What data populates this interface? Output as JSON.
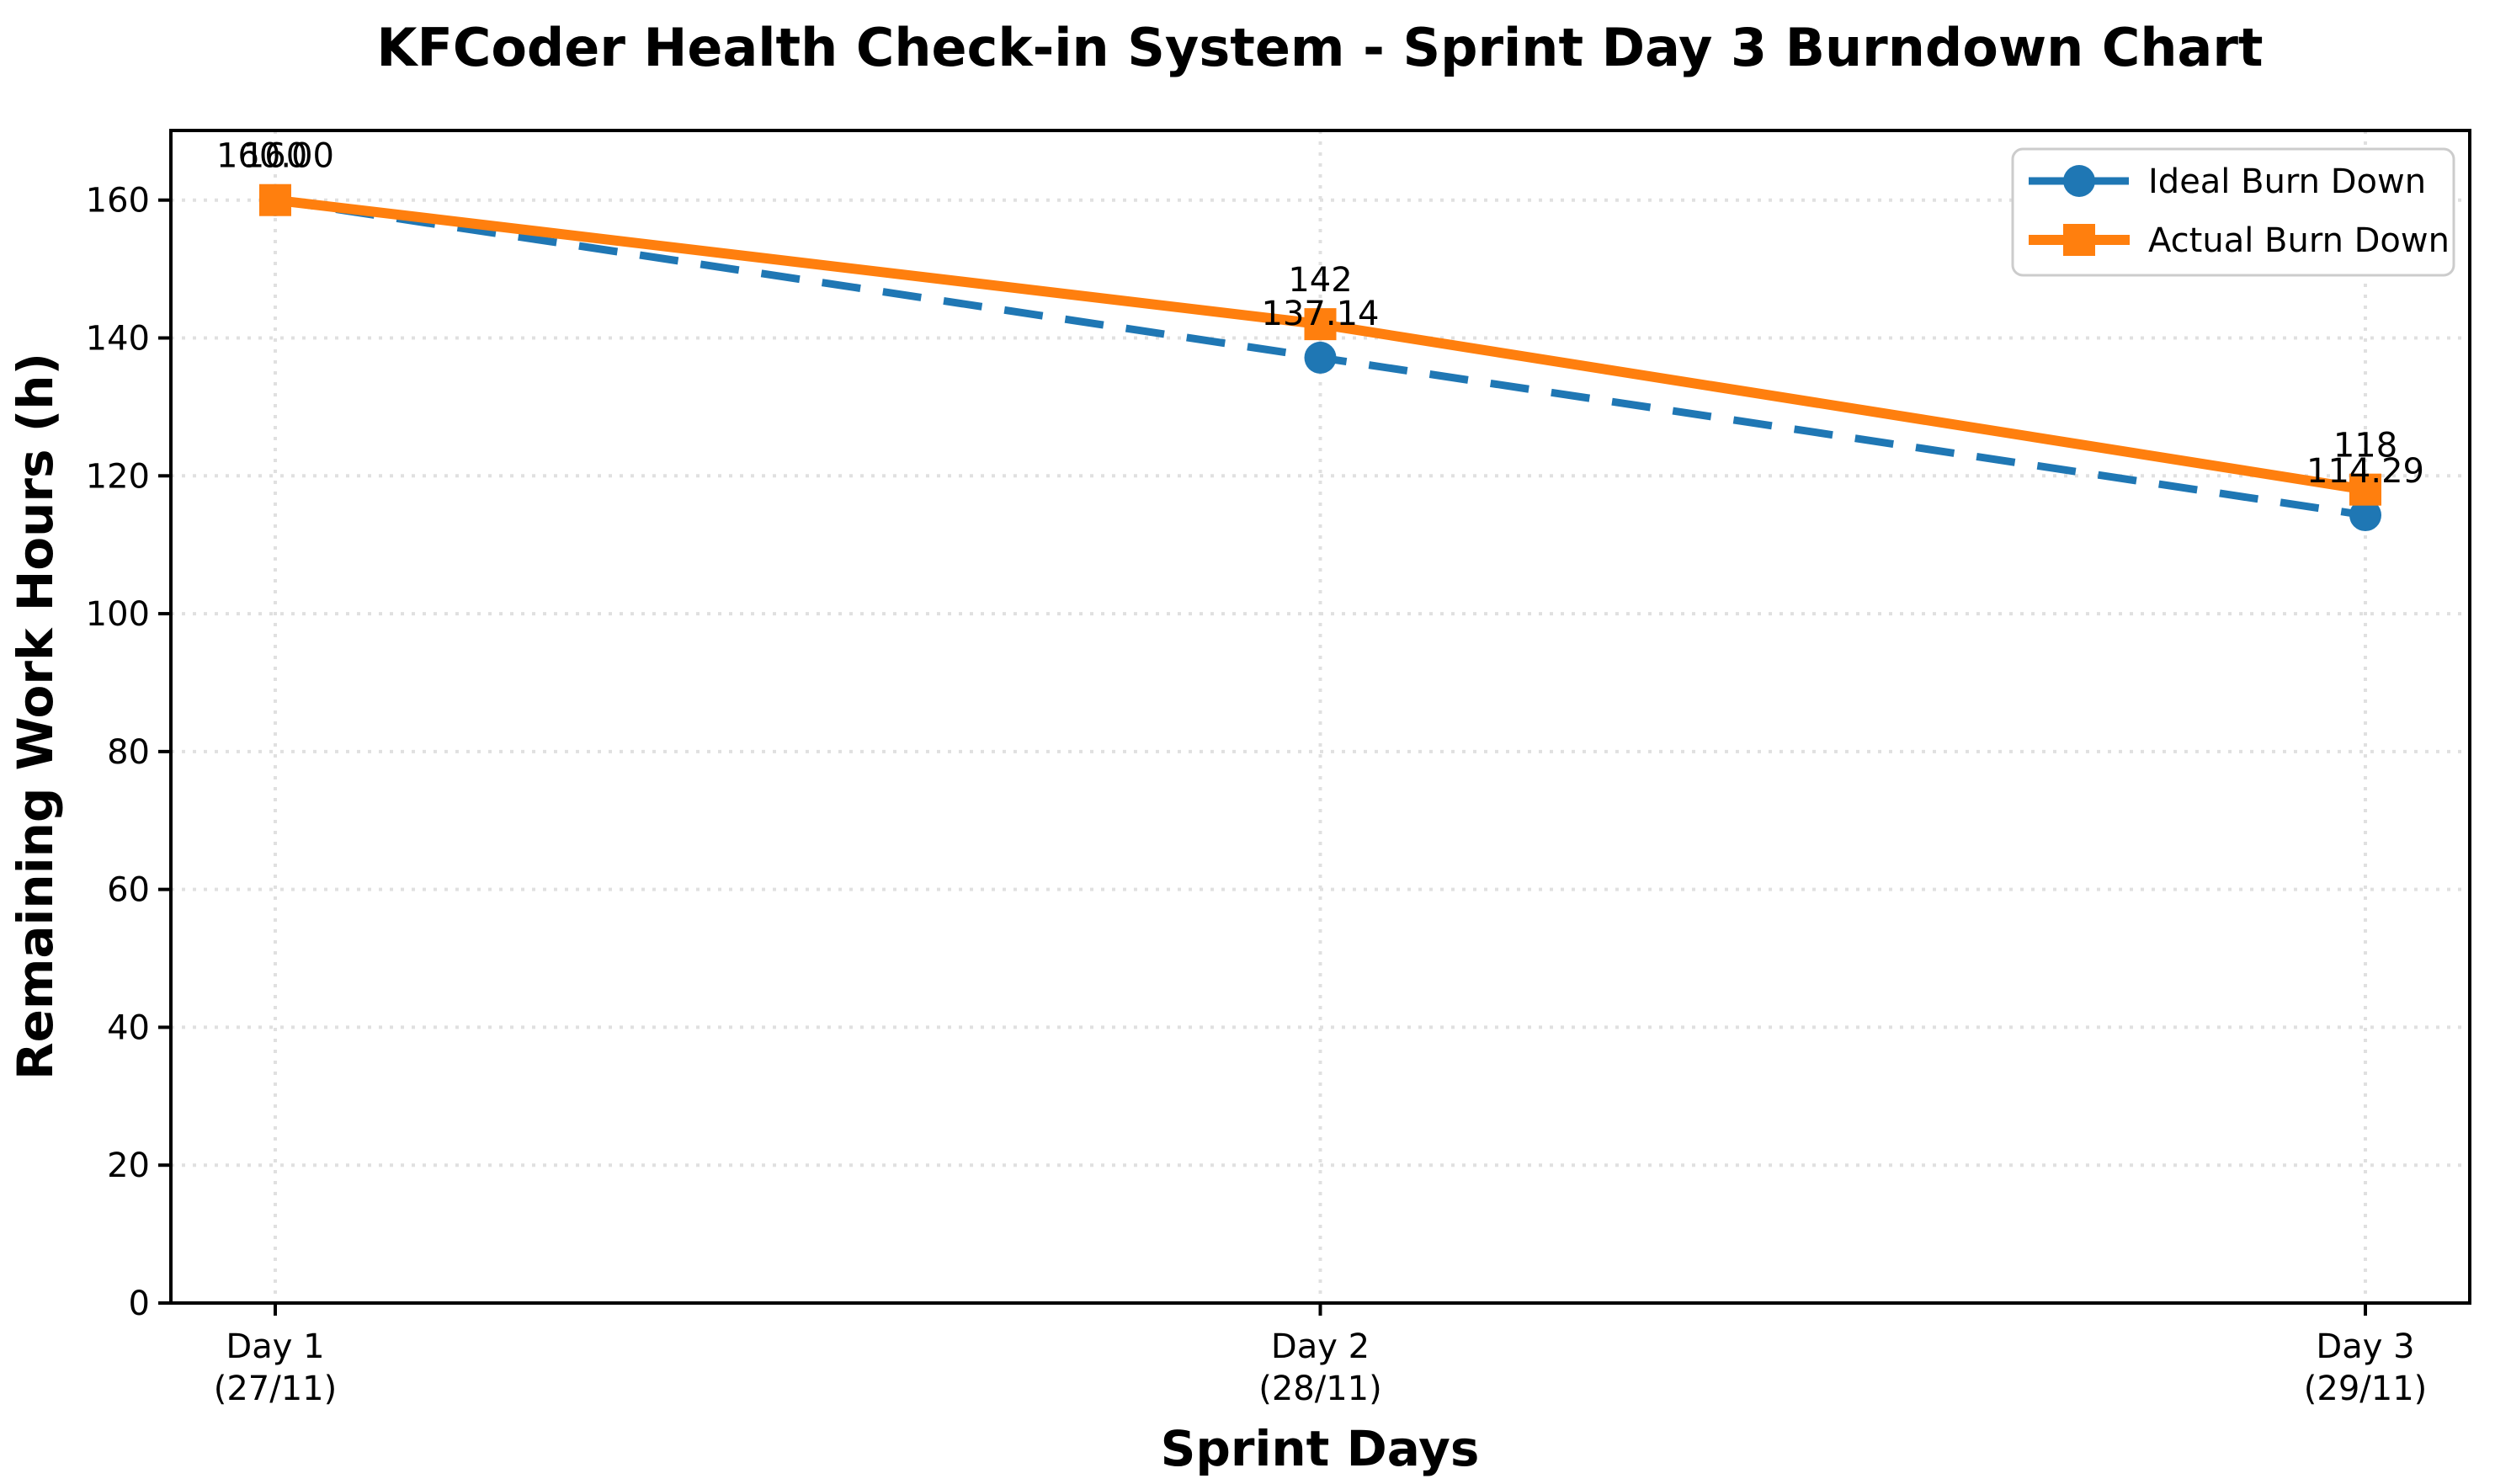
{
  "chart_data": {
    "type": "line",
    "title": "KFCoder Health Check-in System - Sprint Day 3 Burndown Chart",
    "xlabel": "Sprint Days",
    "ylabel": "Remaining Work Hours (h)",
    "categories": [
      {
        "line1": "Day 1",
        "line2": "(27/11)"
      },
      {
        "line1": "Day 2",
        "line2": "(28/11)"
      },
      {
        "line1": "Day 3",
        "line2": "(29/11)"
      }
    ],
    "yticks": [
      0,
      20,
      40,
      60,
      80,
      100,
      120,
      140,
      160
    ],
    "ylim": [
      0,
      170.1
    ],
    "grid": true,
    "grid_style": "dotted",
    "legend_position": "upper right",
    "series": [
      {
        "name": "Ideal Burn Down",
        "values": [
          160.0,
          137.14,
          114.29
        ],
        "point_labels": [
          "160.00",
          "137.14",
          "114.29"
        ],
        "color": "#1f77b4",
        "line_style": "dashed",
        "marker": "circle"
      },
      {
        "name": "Actual Burn Down",
        "values": [
          160,
          142,
          118
        ],
        "point_labels": [
          "160",
          "142",
          "118"
        ],
        "color": "#ff7f0e",
        "line_style": "solid",
        "marker": "square"
      }
    ]
  },
  "colors": {
    "background": "#ffffff",
    "axis": "#000000",
    "grid": "#e0e0e0",
    "legend_border": "#cccccc",
    "legend_background": "#ffffff",
    "ideal": "#1f77b4",
    "actual": "#ff7f0e"
  }
}
